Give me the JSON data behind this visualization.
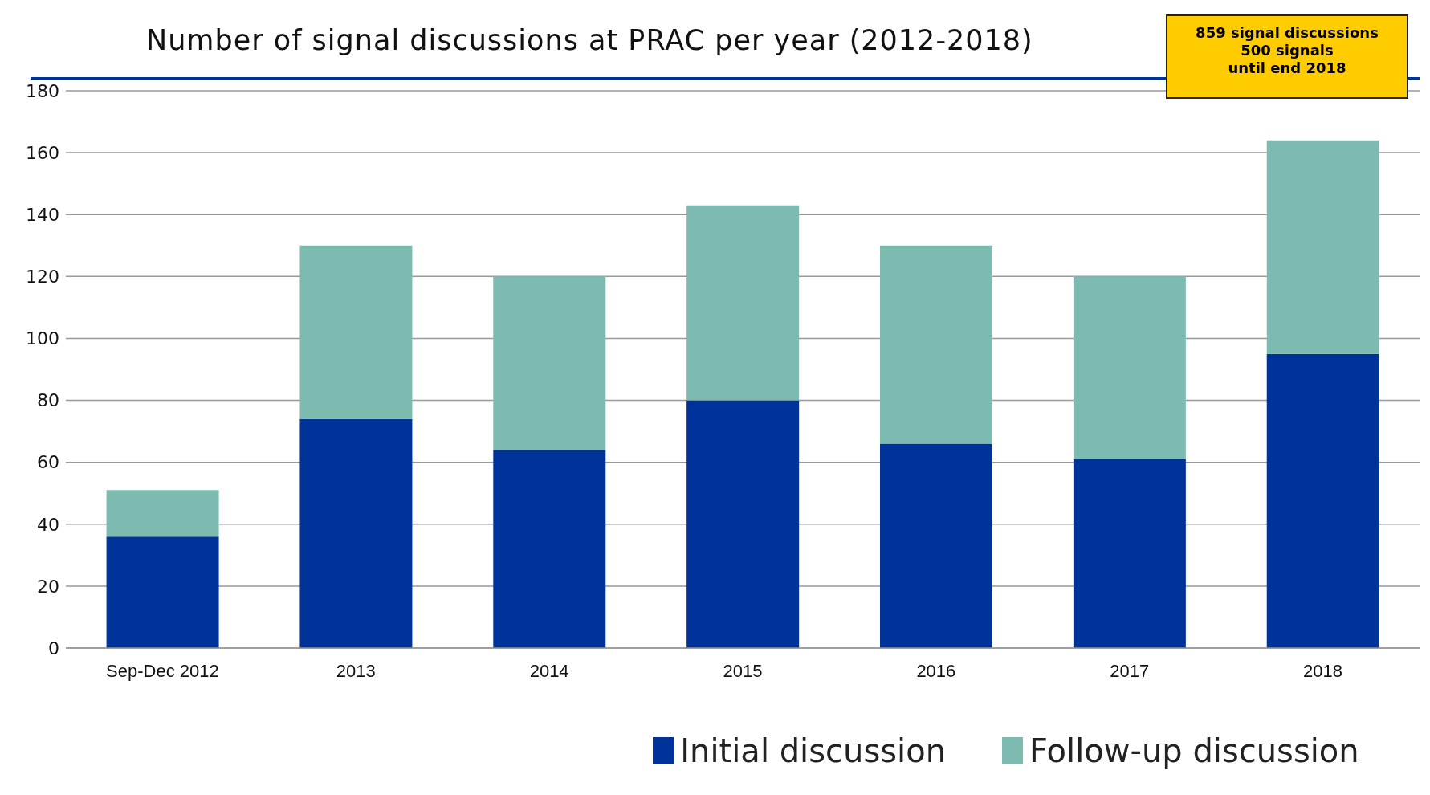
{
  "chart_data": {
    "type": "bar",
    "title": "Number of signal discussions at PRAC per year (2012-2018)",
    "categories": [
      "Sep-Dec 2012",
      "2013",
      "2014",
      "2015",
      "2016",
      "2017",
      "2018"
    ],
    "series": [
      {
        "name": "Initial discussion",
        "color": "#003399",
        "values": [
          36,
          74,
          64,
          80,
          66,
          61,
          95
        ]
      },
      {
        "name": "Follow-up discussion",
        "color": "#7dbbb0",
        "values": [
          15,
          56,
          56,
          63,
          64,
          59,
          69
        ]
      }
    ],
    "stacked": true,
    "ylim": [
      0,
      180
    ],
    "yticks": [
      0,
      20,
      40,
      60,
      80,
      100,
      120,
      140,
      160,
      180
    ],
    "grid": "y",
    "legend": "bottom",
    "annotations": [
      "859 signal discussions\n500 signals\nuntil end 2018"
    ]
  }
}
